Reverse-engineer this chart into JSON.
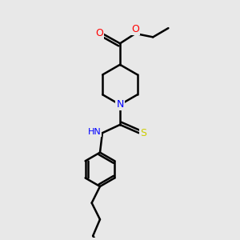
{
  "background_color": "#e8e8e8",
  "atom_colors": {
    "O": "#ff0000",
    "N": "#0000ff",
    "S": "#cccc00",
    "C": "#000000",
    "H": "#808080"
  },
  "bond_color": "#000000",
  "bond_width": 1.8,
  "figsize": [
    3.0,
    3.0
  ],
  "dpi": 100
}
